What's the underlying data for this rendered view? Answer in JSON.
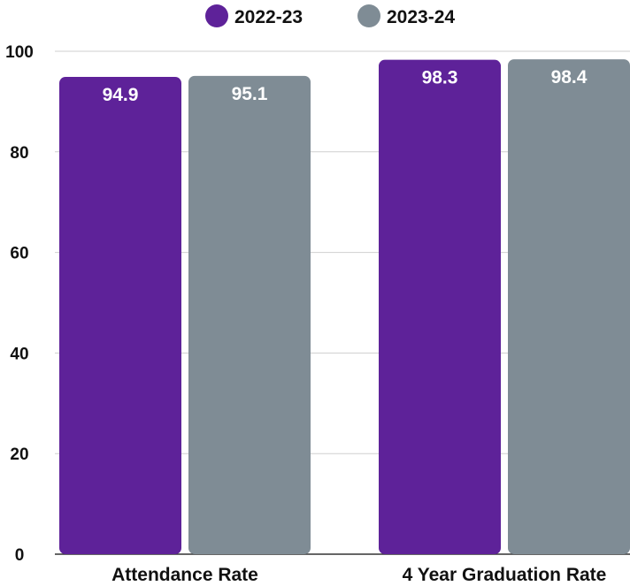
{
  "chart_data": {
    "type": "bar",
    "title": "",
    "xlabel": "",
    "ylabel": "",
    "categories": [
      "Attendance Rate",
      "4 Year Graduation Rate"
    ],
    "series": [
      {
        "name": "2022-23",
        "color": "#5e2299",
        "values": [
          94.9,
          98.3
        ]
      },
      {
        "name": "2023-24",
        "color": "#7f8c95",
        "values": [
          95.1,
          98.4
        ]
      }
    ],
    "ylim": [
      0,
      100
    ],
    "yticks": [
      0,
      20,
      40,
      60,
      80,
      100
    ],
    "grid": true,
    "legend_position": "top-center",
    "data_labels": true
  }
}
